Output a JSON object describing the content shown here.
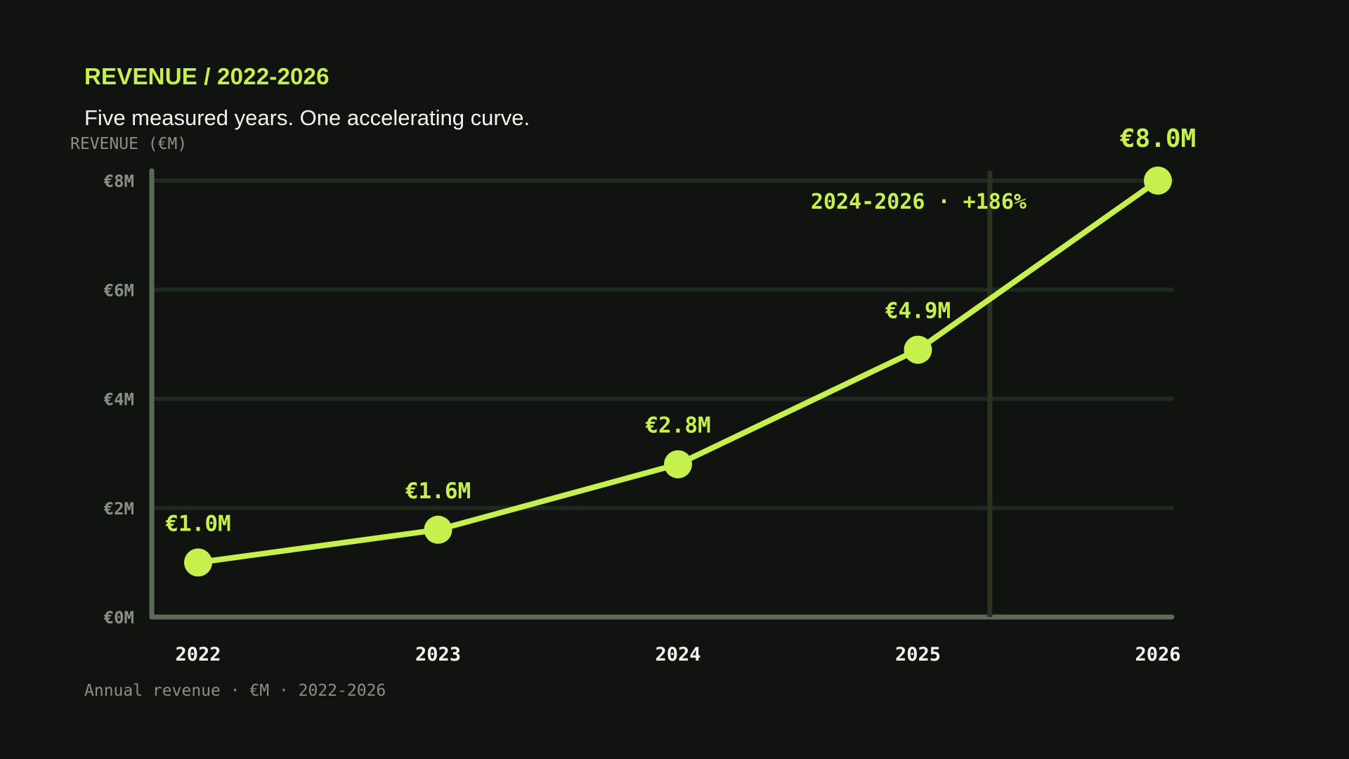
{
  "header": {
    "kicker": "REVENUE / 2022-2026",
    "subtitle": "Five measured years. One accelerating curve."
  },
  "footer": {
    "note": "Annual revenue · €M · 2022-2026"
  },
  "colors": {
    "background": "#111310",
    "accent": "#c6f04e",
    "axis": "#5b6b55",
    "grid": "#1f2a1f",
    "muted_text": "#8a8f86",
    "tick_text": "#f2f2ee"
  },
  "chart_data": {
    "type": "line",
    "title": "",
    "xlabel": "",
    "ylabel": "REVENUE (€M)",
    "x": [
      2022,
      2023,
      2024,
      2025,
      2026
    ],
    "x_tick_labels": [
      "2022",
      "2023",
      "2024",
      "2025",
      "2026"
    ],
    "ylim": [
      0,
      8
    ],
    "y_ticks": [
      0,
      2,
      4,
      6,
      8
    ],
    "y_tick_labels": [
      "€0M",
      "€2M",
      "€4M",
      "€6M",
      "€8M"
    ],
    "grid": true,
    "series": [
      {
        "values": [
          1.0,
          1.6,
          2.8,
          4.9,
          8.0
        ],
        "data_labels": [
          "€1.0M",
          "€1.6M",
          "€2.8M",
          "€4.9M",
          "€8.0M"
        ]
      }
    ],
    "annotations": [
      {
        "text": "2024-2026 · +186%",
        "marker_x": 2025.3
      }
    ]
  }
}
